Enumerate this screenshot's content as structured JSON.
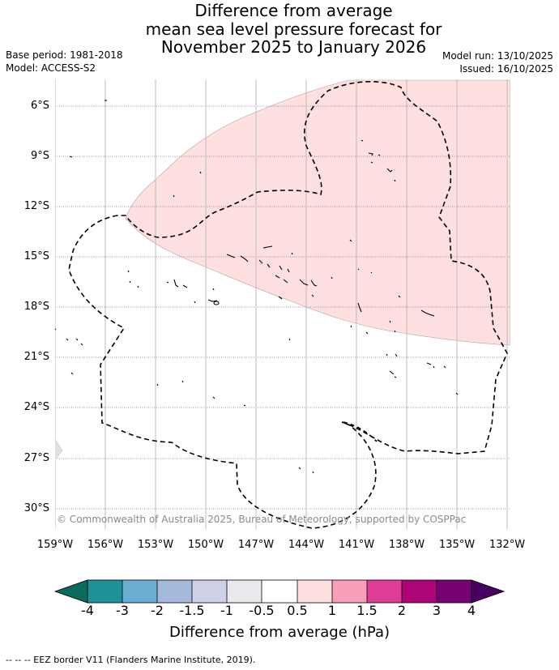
{
  "header": {
    "title_line1": "Difference from average",
    "title_line2": "mean sea level pressure forecast for",
    "title_line3": "November 2025 to January 2026",
    "base_period": "Base period: 1981-2018",
    "model": "Model: ACCESS-S2",
    "model_run": "Model run: 13/10/2025",
    "issued": "Issued: 16/10/2025"
  },
  "map": {
    "latitude_labels": [
      "6°S",
      "9°S",
      "12°S",
      "15°S",
      "18°S",
      "21°S",
      "24°S",
      "27°S",
      "30°S"
    ],
    "longitude_labels": [
      "159°W",
      "156°W",
      "153°W",
      "150°W",
      "147°W",
      "144°W",
      "141°W",
      "138°W",
      "135°W",
      "132°W"
    ],
    "copyright": "© Commonwealth of Australia 2025, Bureau of Meteorology, supported by COSPPac",
    "anomaly_region_color": "#fde0df",
    "anomaly_region_range": "0.5 to 1 hPa"
  },
  "colorbar": {
    "tick_labels": [
      "-4",
      "-3",
      "-2",
      "-1.5",
      "-1",
      "-0.5",
      "0.5",
      "1",
      "1.5",
      "2",
      "3",
      "4"
    ],
    "colors": [
      "#0b6b5d",
      "#1f9199",
      "#6aaed4",
      "#a5b9dd",
      "#cfd1e8",
      "#e9e9ee",
      "#ffffff",
      "#fde0df",
      "#f79eb8",
      "#df3c97",
      "#ad0577",
      "#760273",
      "#4a0060"
    ],
    "label": "Difference from average (hPa)"
  },
  "footer": {
    "legend_text": "--  --  -- EEZ border V11 (Flanders Marine Institute, 2019)."
  }
}
